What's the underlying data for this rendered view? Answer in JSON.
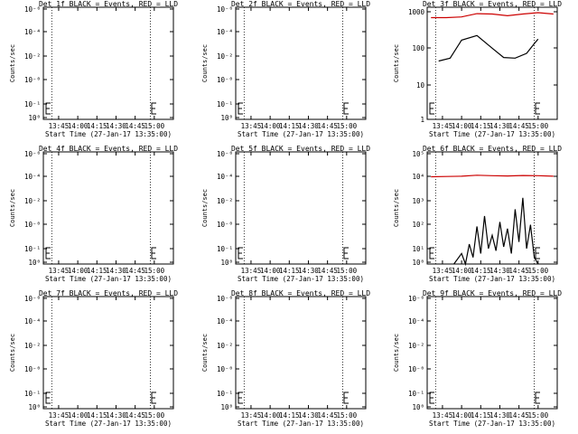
{
  "chart_data": [
    {
      "type": "line",
      "title": "Det 1f BLACK = Events, RED = LLD",
      "xlabel": "Start Time (27-Jan-17 13:35:00)",
      "ylabel": "Counts/sec",
      "y_ticks": [
        "10⁻⁶",
        "10⁻⁴",
        "10⁻²",
        "10⁻⁰",
        "10⁻¹",
        "10⁰"
      ],
      "x_ticks": [
        "13:45",
        "14:00",
        "14:15",
        "14:30",
        "14:45",
        "15:00"
      ],
      "series": []
    },
    {
      "type": "line",
      "title": "Det 2f BLACK = Events, RED = LLD",
      "xlabel": "Start Time (27-Jan-17 13:35:00)",
      "ylabel": "Counts/sec",
      "y_ticks": [
        "10⁻⁶",
        "10⁻⁴",
        "10⁻²",
        "10⁻⁰",
        "10⁻¹",
        "10⁰"
      ],
      "x_ticks": [
        "13:45",
        "14:00",
        "14:15",
        "14:30",
        "14:45",
        "15:00"
      ],
      "series": []
    },
    {
      "type": "line",
      "title": "Det 3f BLACK = Events, RED = LLD",
      "xlabel": "Start Time (27-Jan-17 13:35:00)",
      "ylabel": "Counts/sec",
      "y_ticks": [
        "1000",
        "100",
        "10",
        "1"
      ],
      "x_ticks": [
        "13:45",
        "14:00",
        "14:15",
        "14:30",
        "14:45",
        "15:00"
      ],
      "series": [
        {
          "color": "#000000",
          "x": [
            13.7,
            13.85,
            14.0,
            14.2,
            14.4,
            14.55,
            14.7,
            14.85,
            14.95,
            15.0
          ],
          "y": [
            40,
            48,
            150,
            200,
            90,
            50,
            48,
            65,
            120,
            160
          ]
        },
        {
          "color": "#cc0000",
          "x": [
            13.6,
            13.8,
            14.0,
            14.2,
            14.4,
            14.6,
            14.8,
            15.0,
            15.2
          ],
          "y": [
            620,
            620,
            650,
            800,
            780,
            700,
            780,
            850,
            780
          ]
        }
      ]
    },
    {
      "type": "line",
      "title": "Det 4f BLACK = Events, RED = LLD",
      "xlabel": "Start Time (27-Jan-17 13:35:00)",
      "ylabel": "Counts/sec",
      "y_ticks": [
        "10⁻⁶",
        "10⁻⁴",
        "10⁻²",
        "10⁻⁰",
        "10⁻¹",
        "10⁰"
      ],
      "x_ticks": [
        "13:45",
        "14:00",
        "14:15",
        "14:30",
        "14:45",
        "15:00"
      ],
      "series": []
    },
    {
      "type": "line",
      "title": "Det 5f BLACK = Events, RED = LLD",
      "xlabel": "Start Time (27-Jan-17 13:35:00)",
      "ylabel": "Counts/sec",
      "y_ticks": [
        "10⁻⁶",
        "10⁻⁴",
        "10⁻²",
        "10⁻⁰",
        "10⁻¹",
        "10⁰"
      ],
      "x_ticks": [
        "13:45",
        "14:00",
        "14:15",
        "14:30",
        "14:45",
        "15:00"
      ],
      "series": []
    },
    {
      "type": "line",
      "title": "Det 6f BLACK = Events, RED = LLD",
      "xlabel": "Start Time (27-Jan-17 13:35:00)",
      "ylabel": "Counts/sec",
      "y_ticks": [
        "10⁵",
        "10⁴",
        "10³",
        "10²",
        "10¹",
        "10⁰"
      ],
      "x_ticks": [
        "13:45",
        "14:00",
        "14:15",
        "14:30",
        "14:45",
        "15:00"
      ],
      "series": [
        {
          "color": "#cc0000",
          "x": [
            13.6,
            13.8,
            14.0,
            14.2,
            14.4,
            14.6,
            14.8,
            15.0,
            15.2
          ],
          "y": [
            9000,
            9200,
            9500,
            10500,
            10000,
            9800,
            10200,
            10000,
            9500
          ]
        },
        {
          "color": "#000000",
          "x": [
            13.9,
            14.0,
            14.05,
            14.1,
            14.15,
            14.2,
            14.25,
            14.3,
            14.35,
            14.4,
            14.45,
            14.5,
            14.55,
            14.6,
            14.65,
            14.7,
            14.75,
            14.8,
            14.85,
            14.9,
            14.95,
            15.0
          ],
          "y": [
            1,
            3,
            1,
            8,
            2,
            50,
            3,
            150,
            5,
            20,
            4,
            80,
            6,
            40,
            3,
            300,
            10,
            1000,
            5,
            60,
            2,
            1
          ]
        }
      ]
    },
    {
      "type": "line",
      "title": "Det 7f BLACK = Events, RED = LLD",
      "xlabel": "Start Time (27-Jan-17 13:35:00)",
      "ylabel": "Counts/sec",
      "y_ticks": [
        "10⁻⁶",
        "10⁻⁴",
        "10⁻²",
        "10⁻⁰",
        "10⁻¹",
        "10⁰"
      ],
      "x_ticks": [
        "13:45",
        "14:00",
        "14:15",
        "14:30",
        "14:45",
        "15:00"
      ],
      "series": []
    },
    {
      "type": "line",
      "title": "Det 8f BLACK = Events, RED = LLD",
      "xlabel": "Start Time (27-Jan-17 13:35:00)",
      "ylabel": "Counts/sec",
      "y_ticks": [
        "10⁻⁶",
        "10⁻⁴",
        "10⁻²",
        "10⁻⁰",
        "10⁻¹",
        "10⁰"
      ],
      "x_ticks": [
        "13:45",
        "14:00",
        "14:15",
        "14:30",
        "14:45",
        "15:00"
      ],
      "series": []
    },
    {
      "type": "line",
      "title": "Det 9f BLACK = Events, RED = LLD",
      "xlabel": "Start Time (27-Jan-17 13:35:00)",
      "ylabel": "Counts/sec",
      "y_ticks": [
        "10⁻⁶",
        "10⁻⁴",
        "10⁻²",
        "10⁻⁰",
        "10⁻¹",
        "10⁰"
      ],
      "x_ticks": [
        "13:45",
        "14:00",
        "14:15",
        "14:30",
        "14:45",
        "15:00"
      ],
      "series": []
    }
  ]
}
